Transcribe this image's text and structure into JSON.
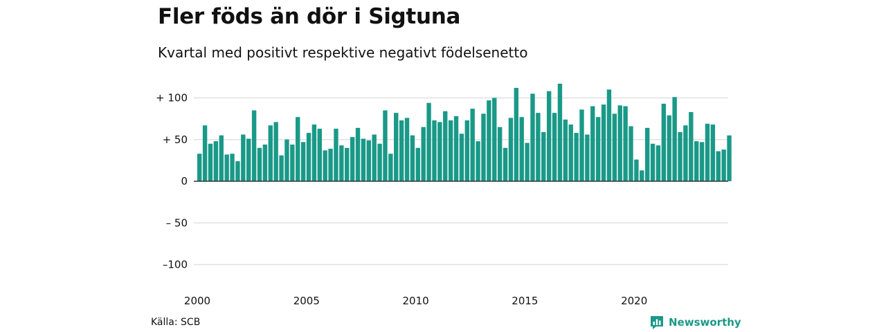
{
  "header": {
    "title": "Fler föds än dör i Sigtuna",
    "subtitle": "Kvartal med positivt respektive negativt födelsenetto"
  },
  "footer": {
    "source": "Källa: SCB",
    "brand": "Newsworthy"
  },
  "colors": {
    "positive": "#1a9988",
    "brand": "#1a9988",
    "gridline": "#e0e0e0",
    "zero_line": "#333333"
  },
  "chart_data": {
    "type": "bar",
    "ylim": [
      -110,
      120
    ],
    "y_ticks": [
      {
        "value": 100,
        "label": "+ 100"
      },
      {
        "value": 50,
        "label": "+  50"
      },
      {
        "value": 0,
        "label": "0"
      },
      {
        "value": -50,
        "label": "– 50"
      },
      {
        "value": -100,
        "label": "–100"
      }
    ],
    "x_ticks": [
      "2000",
      "2005",
      "2010",
      "2015",
      "2020"
    ],
    "grid": true,
    "legend": "none",
    "x_start_year": 2000,
    "values": [
      33,
      67,
      45,
      48,
      55,
      32,
      33,
      24,
      56,
      51,
      85,
      40,
      44,
      67,
      71,
      31,
      50,
      44,
      77,
      47,
      58,
      68,
      63,
      37,
      39,
      63,
      43,
      40,
      53,
      64,
      51,
      49,
      56,
      45,
      85,
      33,
      82,
      73,
      76,
      55,
      40,
      65,
      94,
      73,
      71,
      84,
      73,
      78,
      57,
      73,
      87,
      48,
      81,
      97,
      100,
      65,
      40,
      76,
      112,
      77,
      46,
      105,
      82,
      59,
      108,
      82,
      117,
      74,
      68,
      58,
      86,
      56,
      90,
      77,
      92,
      110,
      81,
      91,
      90,
      66,
      26,
      13,
      64,
      45,
      43,
      93,
      79,
      101,
      59,
      67,
      83,
      48,
      47,
      69,
      68,
      36,
      38,
      55
    ]
  }
}
